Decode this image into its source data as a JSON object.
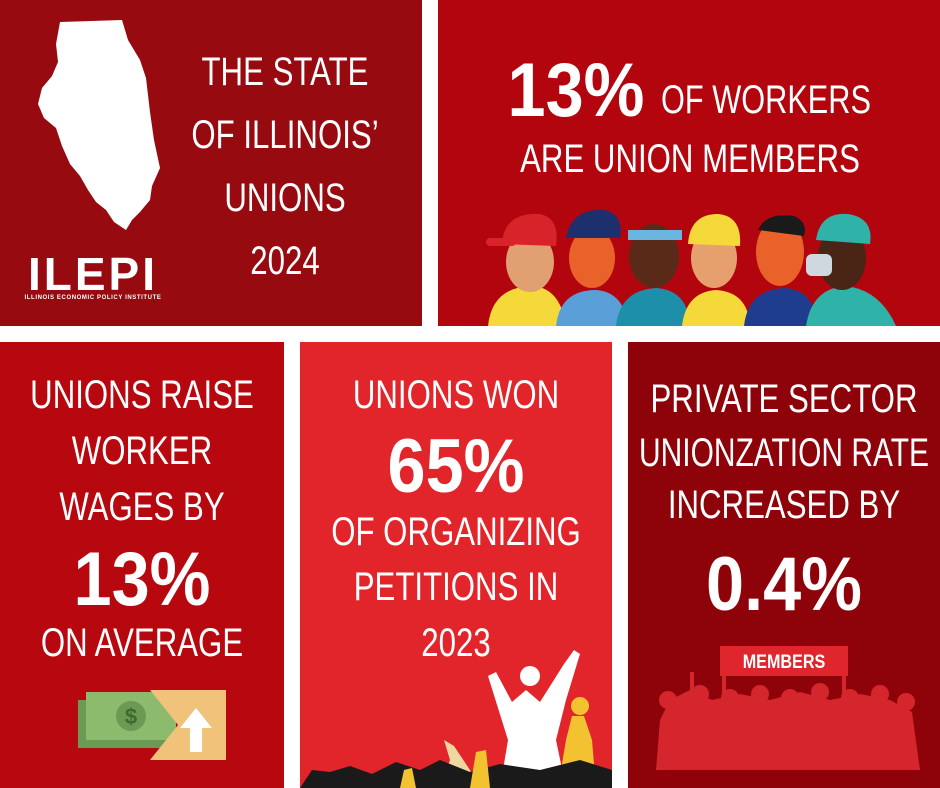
{
  "panels": [
    {
      "title": [
        "THE STATE",
        "OF ILLINOIS’",
        "UNIONS",
        "2024"
      ],
      "logo": {
        "name": "ILEPI",
        "subtitle": "ILLINOIS ECONOMIC POLICY INSTITUTE"
      }
    },
    {
      "highlight": "13%",
      "lines": [
        "OF WORKERS",
        "ARE UNION MEMBERS"
      ]
    },
    {
      "lines_before": [
        "UNIONS RAISE",
        "WORKER",
        "WAGES BY"
      ],
      "highlight": "13%",
      "lines_after": [
        "ON AVERAGE"
      ]
    },
    {
      "lines_before": [
        "UNIONS WON"
      ],
      "highlight": "65%",
      "lines_after": [
        "OF ORGANIZING",
        "PETITIONS IN",
        "2023"
      ]
    },
    {
      "lines_before": [
        "PRIVATE SECTOR",
        "UNIONZATION RATE",
        "INCREASED BY"
      ],
      "highlight": "0.4%",
      "banner": "MEMBERS"
    }
  ]
}
